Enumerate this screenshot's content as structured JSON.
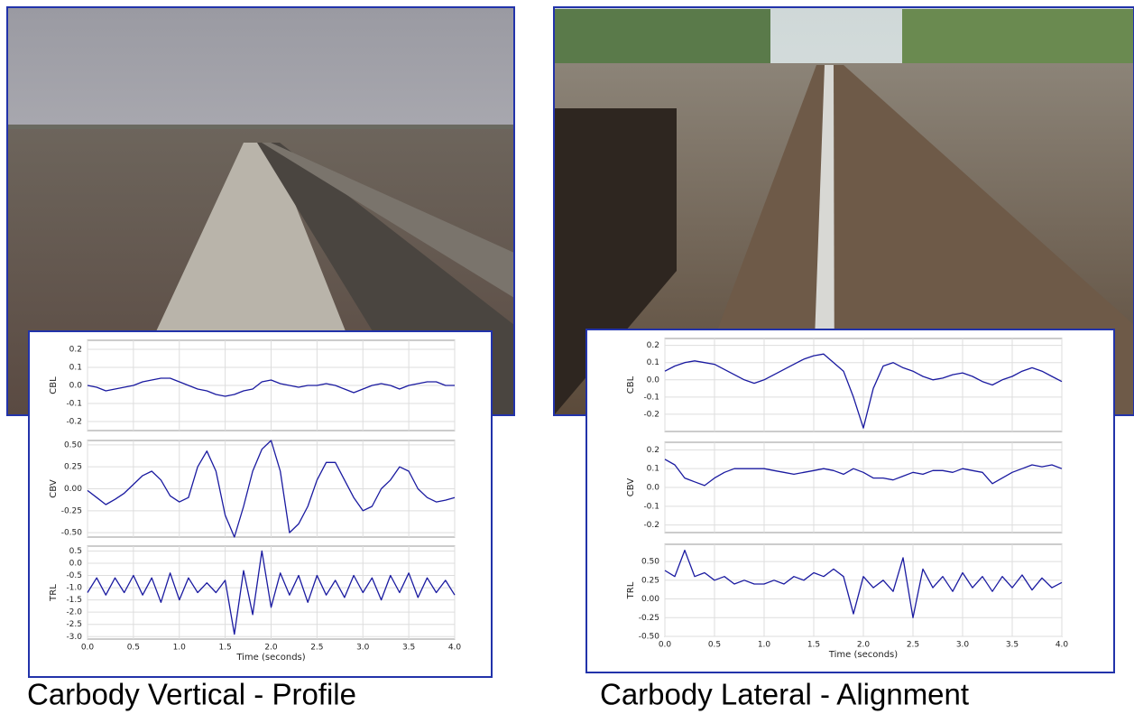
{
  "captions": [
    "Carbody Vertical - Profile",
    "Carbody Lateral - Alignment"
  ],
  "chart_data": [
    {
      "type": "line",
      "ylabel": "CBL",
      "color": "#1a1aa0",
      "grid": true,
      "xlim": [
        0,
        4
      ],
      "ylim": [
        -0.25,
        0.25
      ],
      "yticks": [
        0.2,
        0.1,
        {
          "value": 0,
          "label": "0.0"
        },
        -0.1,
        -0.2
      ],
      "x": [
        0,
        0.1,
        0.2,
        0.3,
        0.4,
        0.5,
        0.6,
        0.7,
        0.8,
        0.9,
        1,
        1.1,
        1.2,
        1.3,
        1.4,
        1.5,
        1.6,
        1.7,
        1.8,
        1.9,
        2,
        2.1,
        2.2,
        2.3,
        2.4,
        2.5,
        2.6,
        2.7,
        2.8,
        2.9,
        3,
        3.1,
        3.2,
        3.3,
        3.4,
        3.5,
        3.6,
        3.7,
        3.8,
        3.9,
        4
      ],
      "values": [
        0.0,
        -0.01,
        -0.03,
        -0.02,
        -0.01,
        0.0,
        0.02,
        0.03,
        0.04,
        0.04,
        0.02,
        0.0,
        -0.02,
        -0.03,
        -0.05,
        -0.06,
        -0.05,
        -0.03,
        -0.02,
        0.02,
        0.03,
        0.01,
        0.0,
        -0.01,
        0.0,
        0.0,
        0.01,
        0.0,
        -0.02,
        -0.04,
        -0.02,
        0.0,
        0.01,
        0.0,
        -0.02,
        0.0,
        0.01,
        0.02,
        0.02,
        0.0,
        0.0
      ]
    },
    {
      "type": "line",
      "ylabel": "CBV",
      "color": "#1a1aa0",
      "grid": true,
      "xlim": [
        0,
        4
      ],
      "ylim": [
        -0.55,
        0.55
      ],
      "yticks": [
        {
          "value": 0.5,
          "label": "0.50"
        },
        0.25,
        {
          "value": 0,
          "label": "0.00"
        },
        -0.25,
        {
          "value": -0.5,
          "label": "-0.50"
        }
      ],
      "x": [
        0,
        0.1,
        0.2,
        0.3,
        0.4,
        0.5,
        0.6,
        0.7,
        0.8,
        0.9,
        1,
        1.1,
        1.2,
        1.3,
        1.4,
        1.5,
        1.6,
        1.7,
        1.8,
        1.9,
        2,
        2.1,
        2.2,
        2.3,
        2.4,
        2.5,
        2.6,
        2.7,
        2.8,
        2.9,
        3,
        3.1,
        3.2,
        3.3,
        3.4,
        3.5,
        3.6,
        3.7,
        3.8,
        3.9,
        4
      ],
      "values": [
        -0.02,
        -0.1,
        -0.18,
        -0.12,
        -0.05,
        0.05,
        0.15,
        0.2,
        0.1,
        -0.08,
        -0.15,
        -0.1,
        0.25,
        0.43,
        0.2,
        -0.3,
        -0.55,
        -0.2,
        0.2,
        0.45,
        0.55,
        0.2,
        -0.5,
        -0.4,
        -0.2,
        0.1,
        0.3,
        0.3,
        0.1,
        -0.1,
        -0.25,
        -0.2,
        0.0,
        0.1,
        0.25,
        0.2,
        0.0,
        -0.1,
        -0.15,
        -0.13,
        -0.1
      ]
    },
    {
      "type": "line",
      "ylabel": "TRL",
      "xlabel": "Time (seconds)",
      "color": "#1a1aa0",
      "grid": true,
      "xlim": [
        0,
        4
      ],
      "ylim": [
        -3.1,
        0.7
      ],
      "xticks": [
        {
          "value": 0,
          "label": "0.0"
        },
        0.5,
        {
          "value": 1,
          "label": "1.0"
        },
        1.5,
        {
          "value": 2,
          "label": "2.0"
        },
        2.5,
        {
          "value": 3,
          "label": "3.0"
        },
        3.5,
        {
          "value": 4,
          "label": "4.0"
        }
      ],
      "yticks": [
        0.5,
        {
          "value": 0,
          "label": "0.0"
        },
        -0.5,
        {
          "value": -1,
          "label": "-1.0"
        },
        -1.5,
        {
          "value": -2,
          "label": "-2.0"
        },
        -2.5,
        {
          "value": -3,
          "label": "-3.0"
        }
      ],
      "x": [
        0,
        0.1,
        0.2,
        0.3,
        0.4,
        0.5,
        0.6,
        0.7,
        0.8,
        0.9,
        1,
        1.1,
        1.2,
        1.3,
        1.4,
        1.5,
        1.6,
        1.7,
        1.8,
        1.9,
        2,
        2.1,
        2.2,
        2.3,
        2.4,
        2.5,
        2.6,
        2.7,
        2.8,
        2.9,
        3,
        3.1,
        3.2,
        3.3,
        3.4,
        3.5,
        3.6,
        3.7,
        3.8,
        3.9,
        4
      ],
      "values": [
        -1.2,
        -0.6,
        -1.3,
        -0.6,
        -1.2,
        -0.5,
        -1.3,
        -0.6,
        -1.6,
        -0.4,
        -1.5,
        -0.6,
        -1.2,
        -0.8,
        -1.2,
        -0.7,
        -2.9,
        -0.3,
        -2.1,
        0.5,
        -1.8,
        -0.4,
        -1.3,
        -0.5,
        -1.6,
        -0.5,
        -1.3,
        -0.7,
        -1.4,
        -0.5,
        -1.2,
        -0.6,
        -1.5,
        -0.5,
        -1.2,
        -0.4,
        -1.4,
        -0.6,
        -1.2,
        -0.7,
        -1.3
      ]
    },
    {
      "type": "line",
      "ylabel": "CBL",
      "color": "#1a1aa0",
      "grid": true,
      "xlim": [
        0,
        4
      ],
      "ylim": [
        -0.3,
        0.24
      ],
      "yticks": [
        0.2,
        0.1,
        {
          "value": 0,
          "label": "0.0"
        },
        -0.1,
        -0.2
      ],
      "x": [
        0,
        0.1,
        0.2,
        0.3,
        0.4,
        0.5,
        0.6,
        0.7,
        0.8,
        0.9,
        1,
        1.1,
        1.2,
        1.3,
        1.4,
        1.5,
        1.6,
        1.7,
        1.8,
        1.9,
        2,
        2.1,
        2.2,
        2.3,
        2.4,
        2.5,
        2.6,
        2.7,
        2.8,
        2.9,
        3,
        3.1,
        3.2,
        3.3,
        3.4,
        3.5,
        3.6,
        3.7,
        3.8,
        3.9,
        4
      ],
      "values": [
        0.05,
        0.08,
        0.1,
        0.11,
        0.1,
        0.09,
        0.06,
        0.03,
        0.0,
        -0.02,
        0.0,
        0.03,
        0.06,
        0.09,
        0.12,
        0.14,
        0.15,
        0.1,
        0.05,
        -0.1,
        -0.28,
        -0.05,
        0.08,
        0.1,
        0.07,
        0.05,
        0.02,
        0.0,
        0.01,
        0.03,
        0.04,
        0.02,
        -0.01,
        -0.03,
        0.0,
        0.02,
        0.05,
        0.07,
        0.05,
        0.02,
        -0.01
      ]
    },
    {
      "type": "line",
      "ylabel": "CBV",
      "color": "#1a1aa0",
      "grid": true,
      "xlim": [
        0,
        4
      ],
      "ylim": [
        -0.24,
        0.24
      ],
      "yticks": [
        0.2,
        0.1,
        {
          "value": 0,
          "label": "0.0"
        },
        -0.1,
        -0.2
      ],
      "x": [
        0,
        0.1,
        0.2,
        0.3,
        0.4,
        0.5,
        0.6,
        0.7,
        0.8,
        0.9,
        1,
        1.1,
        1.2,
        1.3,
        1.4,
        1.5,
        1.6,
        1.7,
        1.8,
        1.9,
        2,
        2.1,
        2.2,
        2.3,
        2.4,
        2.5,
        2.6,
        2.7,
        2.8,
        2.9,
        3,
        3.1,
        3.2,
        3.3,
        3.4,
        3.5,
        3.6,
        3.7,
        3.8,
        3.9,
        4
      ],
      "values": [
        0.15,
        0.12,
        0.05,
        0.03,
        0.01,
        0.05,
        0.08,
        0.1,
        0.1,
        0.1,
        0.1,
        0.09,
        0.08,
        0.07,
        0.08,
        0.09,
        0.1,
        0.09,
        0.07,
        0.1,
        0.08,
        0.05,
        0.05,
        0.04,
        0.06,
        0.08,
        0.07,
        0.09,
        0.09,
        0.08,
        0.1,
        0.09,
        0.08,
        0.02,
        0.05,
        0.08,
        0.1,
        0.12,
        0.11,
        0.12,
        0.1
      ]
    },
    {
      "type": "line",
      "ylabel": "TRL",
      "xlabel": "Time (seconds)",
      "color": "#1a1aa0",
      "grid": true,
      "xlim": [
        0,
        4
      ],
      "ylim": [
        -0.5,
        0.73
      ],
      "xticks": [
        {
          "value": 0,
          "label": "0.0"
        },
        0.5,
        {
          "value": 1,
          "label": "1.0"
        },
        1.5,
        {
          "value": 2,
          "label": "2.0"
        },
        2.5,
        {
          "value": 3,
          "label": "3.0"
        },
        3.5,
        {
          "value": 4,
          "label": "4.0"
        }
      ],
      "yticks": [
        {
          "value": 0.5,
          "label": "0.50"
        },
        0.25,
        {
          "value": 0,
          "label": "0.00"
        },
        -0.25,
        {
          "value": -0.5,
          "label": "-0.50"
        }
      ],
      "x": [
        0,
        0.1,
        0.2,
        0.3,
        0.4,
        0.5,
        0.6,
        0.7,
        0.8,
        0.9,
        1,
        1.1,
        1.2,
        1.3,
        1.4,
        1.5,
        1.6,
        1.7,
        1.8,
        1.9,
        2,
        2.1,
        2.2,
        2.3,
        2.4,
        2.5,
        2.6,
        2.7,
        2.8,
        2.9,
        3,
        3.1,
        3.2,
        3.3,
        3.4,
        3.5,
        3.6,
        3.7,
        3.8,
        3.9,
        4
      ],
      "values": [
        0.38,
        0.3,
        0.65,
        0.3,
        0.35,
        0.25,
        0.3,
        0.2,
        0.25,
        0.2,
        0.2,
        0.25,
        0.2,
        0.3,
        0.25,
        0.35,
        0.3,
        0.4,
        0.3,
        -0.2,
        0.3,
        0.15,
        0.25,
        0.1,
        0.55,
        -0.25,
        0.4,
        0.15,
        0.3,
        0.1,
        0.35,
        0.15,
        0.3,
        0.1,
        0.3,
        0.15,
        0.32,
        0.12,
        0.28,
        0.15,
        0.22
      ]
    }
  ]
}
